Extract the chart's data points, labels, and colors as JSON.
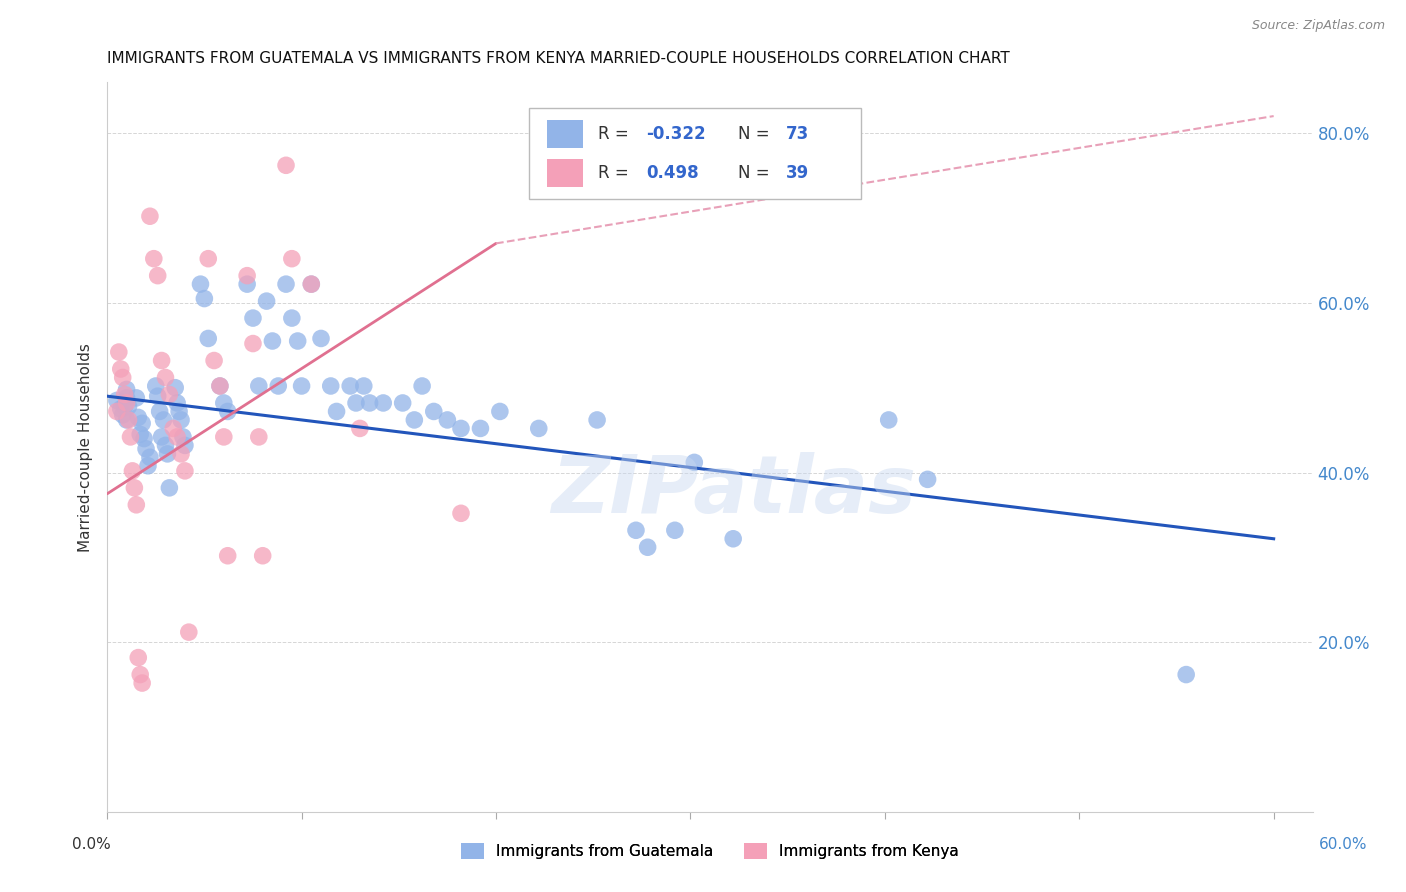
{
  "title": "IMMIGRANTS FROM GUATEMALA VS IMMIGRANTS FROM KENYA MARRIED-COUPLE HOUSEHOLDS CORRELATION CHART",
  "source": "Source: ZipAtlas.com",
  "ylabel": "Married-couple Households",
  "xlim": [
    0.0,
    0.62
  ],
  "ylim": [
    0.0,
    0.86
  ],
  "yticks": [
    0.2,
    0.4,
    0.6,
    0.8
  ],
  "ytick_labels": [
    "20.0%",
    "40.0%",
    "60.0%",
    "80.0%"
  ],
  "xtick_vals": [
    0.0,
    0.1,
    0.2,
    0.3,
    0.4,
    0.5,
    0.6
  ],
  "watermark": "ZIPatlas",
  "legend_R_guatemala": "-0.322",
  "legend_N_guatemala": "73",
  "legend_R_kenya": "0.498",
  "legend_N_kenya": "39",
  "guatemala_color": "#92b4e8",
  "kenya_color": "#f4a0b8",
  "guatemala_line_color": "#2255bb",
  "kenya_line_color": "#e07090",
  "kenya_line_dashed_color": "#e8a0b8",
  "guatemala_scatter": [
    [
      0.005,
      0.485
    ],
    [
      0.007,
      0.475
    ],
    [
      0.008,
      0.468
    ],
    [
      0.009,
      0.478
    ],
    [
      0.01,
      0.462
    ],
    [
      0.01,
      0.498
    ],
    [
      0.01,
      0.488
    ],
    [
      0.011,
      0.478
    ],
    [
      0.015,
      0.488
    ],
    [
      0.016,
      0.465
    ],
    [
      0.017,
      0.445
    ],
    [
      0.018,
      0.458
    ],
    [
      0.019,
      0.44
    ],
    [
      0.02,
      0.428
    ],
    [
      0.021,
      0.408
    ],
    [
      0.022,
      0.418
    ],
    [
      0.025,
      0.502
    ],
    [
      0.026,
      0.49
    ],
    [
      0.027,
      0.472
    ],
    [
      0.028,
      0.442
    ],
    [
      0.029,
      0.462
    ],
    [
      0.03,
      0.432
    ],
    [
      0.031,
      0.422
    ],
    [
      0.032,
      0.382
    ],
    [
      0.035,
      0.5
    ],
    [
      0.036,
      0.482
    ],
    [
      0.037,
      0.472
    ],
    [
      0.038,
      0.462
    ],
    [
      0.039,
      0.442
    ],
    [
      0.04,
      0.432
    ],
    [
      0.048,
      0.622
    ],
    [
      0.05,
      0.605
    ],
    [
      0.052,
      0.558
    ],
    [
      0.058,
      0.502
    ],
    [
      0.06,
      0.482
    ],
    [
      0.062,
      0.472
    ],
    [
      0.072,
      0.622
    ],
    [
      0.075,
      0.582
    ],
    [
      0.078,
      0.502
    ],
    [
      0.082,
      0.602
    ],
    [
      0.085,
      0.555
    ],
    [
      0.088,
      0.502
    ],
    [
      0.092,
      0.622
    ],
    [
      0.095,
      0.582
    ],
    [
      0.098,
      0.555
    ],
    [
      0.1,
      0.502
    ],
    [
      0.105,
      0.622
    ],
    [
      0.11,
      0.558
    ],
    [
      0.115,
      0.502
    ],
    [
      0.118,
      0.472
    ],
    [
      0.125,
      0.502
    ],
    [
      0.128,
      0.482
    ],
    [
      0.132,
      0.502
    ],
    [
      0.135,
      0.482
    ],
    [
      0.142,
      0.482
    ],
    [
      0.152,
      0.482
    ],
    [
      0.158,
      0.462
    ],
    [
      0.162,
      0.502
    ],
    [
      0.168,
      0.472
    ],
    [
      0.175,
      0.462
    ],
    [
      0.182,
      0.452
    ],
    [
      0.192,
      0.452
    ],
    [
      0.202,
      0.472
    ],
    [
      0.222,
      0.452
    ],
    [
      0.252,
      0.462
    ],
    [
      0.272,
      0.332
    ],
    [
      0.278,
      0.312
    ],
    [
      0.292,
      0.332
    ],
    [
      0.302,
      0.412
    ],
    [
      0.322,
      0.322
    ],
    [
      0.402,
      0.462
    ],
    [
      0.422,
      0.392
    ],
    [
      0.555,
      0.162
    ]
  ],
  "kenya_scatter": [
    [
      0.005,
      0.472
    ],
    [
      0.006,
      0.542
    ],
    [
      0.007,
      0.522
    ],
    [
      0.008,
      0.512
    ],
    [
      0.009,
      0.492
    ],
    [
      0.01,
      0.482
    ],
    [
      0.011,
      0.462
    ],
    [
      0.012,
      0.442
    ],
    [
      0.013,
      0.402
    ],
    [
      0.014,
      0.382
    ],
    [
      0.015,
      0.362
    ],
    [
      0.016,
      0.182
    ],
    [
      0.017,
      0.162
    ],
    [
      0.018,
      0.152
    ],
    [
      0.022,
      0.702
    ],
    [
      0.024,
      0.652
    ],
    [
      0.026,
      0.632
    ],
    [
      0.028,
      0.532
    ],
    [
      0.03,
      0.512
    ],
    [
      0.032,
      0.492
    ],
    [
      0.034,
      0.452
    ],
    [
      0.036,
      0.442
    ],
    [
      0.038,
      0.422
    ],
    [
      0.04,
      0.402
    ],
    [
      0.042,
      0.212
    ],
    [
      0.052,
      0.652
    ],
    [
      0.055,
      0.532
    ],
    [
      0.058,
      0.502
    ],
    [
      0.06,
      0.442
    ],
    [
      0.062,
      0.302
    ],
    [
      0.072,
      0.632
    ],
    [
      0.075,
      0.552
    ],
    [
      0.078,
      0.442
    ],
    [
      0.08,
      0.302
    ],
    [
      0.092,
      0.762
    ],
    [
      0.095,
      0.652
    ],
    [
      0.105,
      0.622
    ],
    [
      0.13,
      0.452
    ],
    [
      0.182,
      0.352
    ]
  ],
  "guatemala_trend": [
    0.0,
    0.49,
    0.6,
    0.322
  ],
  "kenya_trend": [
    0.0,
    0.375,
    0.2,
    0.67
  ],
  "kenya_trend_dashed": [
    0.2,
    0.67,
    0.6,
    0.82
  ]
}
